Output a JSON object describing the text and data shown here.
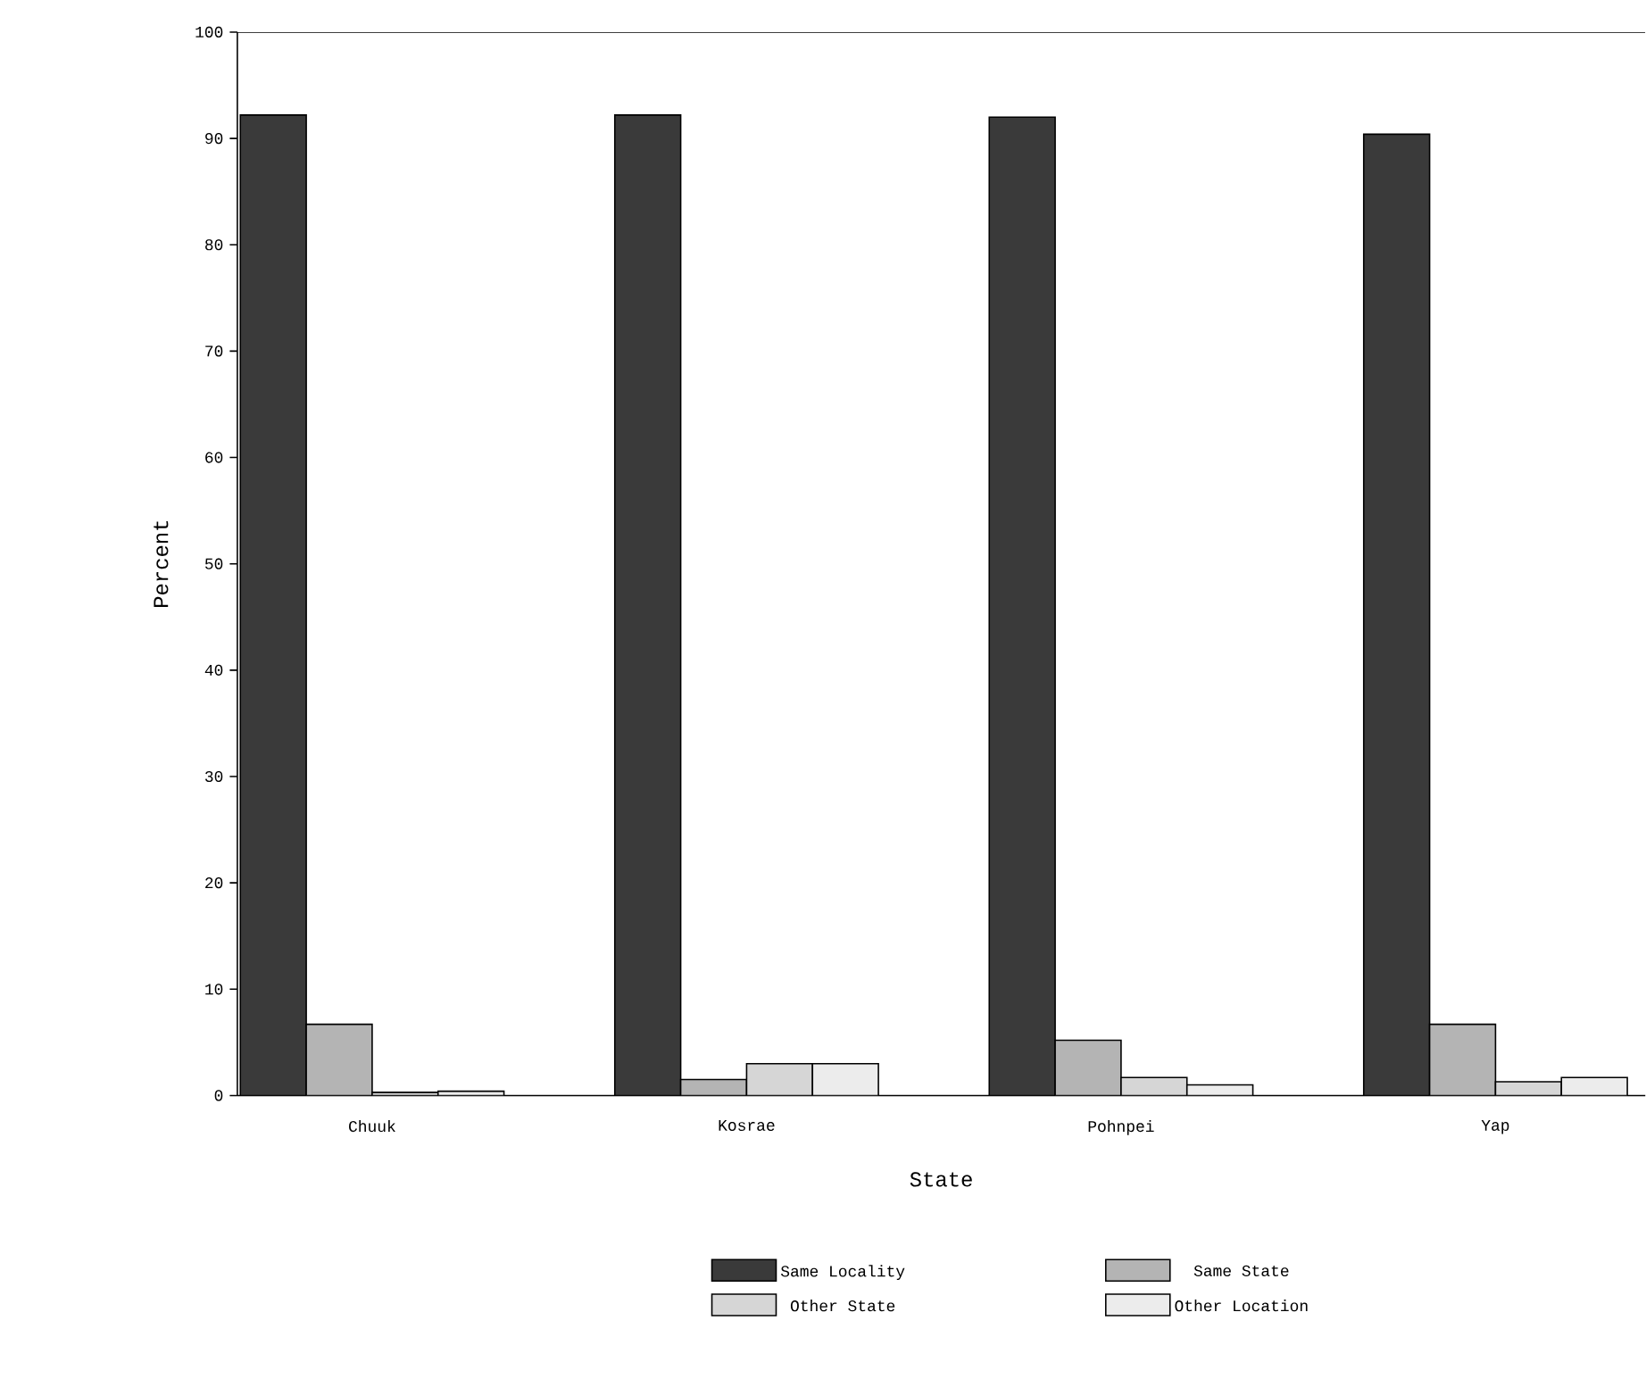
{
  "chart_data": {
    "type": "bar",
    "xlabel": "State",
    "ylabel": "Percent",
    "categories": [
      "Chuuk",
      "Kosrae",
      "Pohnpei",
      "Yap"
    ],
    "series": [
      {
        "name": "Same Locality",
        "color": "#3a3a3a",
        "values": [
          92.2,
          92.2,
          92.0,
          90.4
        ]
      },
      {
        "name": "Same State",
        "color": "#b4b4b4",
        "values": [
          6.7,
          1.5,
          5.2,
          6.7
        ]
      },
      {
        "name": "Other State",
        "color": "#d6d6d6",
        "values": [
          0.3,
          3.0,
          1.7,
          1.3
        ]
      },
      {
        "name": "Other Location",
        "color": "#ececec",
        "values": [
          0.4,
          3.0,
          1.0,
          1.7
        ]
      }
    ],
    "ylim": [
      0,
      100
    ],
    "yticks": [
      0,
      10,
      20,
      30,
      40,
      50,
      60,
      70,
      80,
      90,
      100
    ],
    "legend": "bottom"
  }
}
